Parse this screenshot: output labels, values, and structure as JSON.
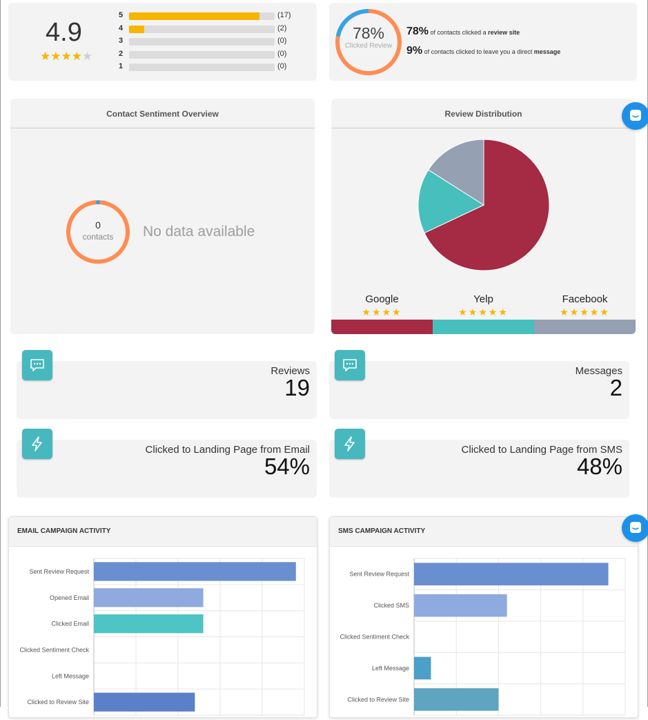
{
  "rating": {
    "score": "4.9",
    "stars": "★★★★★",
    "rows": [
      {
        "label": "5",
        "count": "(17)",
        "fraction": 0.895
      },
      {
        "label": "4",
        "count": "(2)",
        "fraction": 0.105
      },
      {
        "label": "3",
        "count": "(0)",
        "fraction": 0
      },
      {
        "label": "2",
        "count": "(0)",
        "fraction": 0
      },
      {
        "label": "1",
        "count": "(0)",
        "fraction": 0
      }
    ]
  },
  "clicked_review": {
    "ring_value": "78%",
    "ring_label": "Clicked Review",
    "ring_fraction": 0.78,
    "review_site_pct": "78%",
    "review_site_text": "of contacts clicked a",
    "review_site_bold": "review site",
    "message_pct": "9%",
    "message_text": "of contacts clicked to leave you a direct",
    "message_bold": "message"
  },
  "sentiment": {
    "title": "Contact Sentiment Overview",
    "count": "0",
    "count_label": "contacts",
    "no_data": "No data available"
  },
  "distribution": {
    "title": "Review Distribution",
    "sites": [
      {
        "name": "Google",
        "stars": "★★★★",
        "color": "#a52a43"
      },
      {
        "name": "Yelp",
        "stars": "★★★★★",
        "color": "#47bfbd"
      },
      {
        "name": "Facebook",
        "stars": "★★★★★",
        "color": "#95a0b3"
      }
    ]
  },
  "tiles": {
    "reviews_label": "Reviews",
    "reviews_value": "19",
    "messages_label": "Messages",
    "messages_value": "2",
    "email_label": "Clicked to Landing Page from Email",
    "email_value": "54%",
    "sms_label": "Clicked to Landing Page from SMS",
    "sms_value": "48%"
  },
  "colors": {
    "accent_teal": "#47b8be",
    "star_gold": "#f7b500",
    "ring_orange": "#ff8c52",
    "ring_blue": "#36a3e6",
    "chat_blue": "#1e90e8"
  },
  "chart_data": [
    {
      "type": "pie",
      "title": "Review Distribution",
      "categories": [
        "Google",
        "Yelp",
        "Facebook"
      ],
      "values": [
        68,
        16,
        16
      ]
    },
    {
      "type": "bar",
      "orientation": "horizontal",
      "title": "EMAIL CAMPAIGN ACTIVITY",
      "categories": [
        "Sent Review Request",
        "Opened Email",
        "Clicked Email",
        "Clicked Sentiment Check",
        "Left Message",
        "Clicked to Review Site"
      ],
      "values": [
        24,
        13,
        13,
        0,
        0,
        12
      ],
      "colors": [
        "#6a8fd0",
        "#8eaadf",
        "#4ec4c4",
        "#6a8fd0",
        "#6a8fd0",
        "#5b7fc8"
      ],
      "xlim": [
        0,
        25
      ],
      "xticks": [
        "0",
        "5",
        "10",
        "15",
        "20",
        "25"
      ],
      "grid": true
    },
    {
      "type": "bar",
      "orientation": "horizontal",
      "title": "SMS CAMPAIGN ACTIVITY",
      "categories": [
        "Sent Review Request",
        "Clicked SMS",
        "Clicked Sentiment Check",
        "Left Message",
        "Clicked to Review Site"
      ],
      "values": [
        23,
        11,
        0,
        2,
        10
      ],
      "colors": [
        "#6a8fd0",
        "#8eaadf",
        "#6a8fd0",
        "#4c9fc8",
        "#5fa4c0"
      ],
      "xlim": [
        0,
        25
      ],
      "xticks": [
        "0",
        "5",
        "10",
        "15",
        "20",
        "25"
      ],
      "grid": true
    }
  ]
}
